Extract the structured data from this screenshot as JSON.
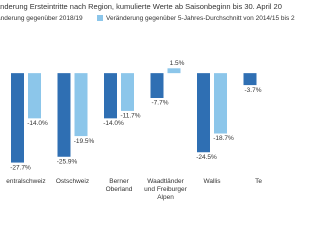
{
  "chart_data": {
    "type": "bar",
    "title": "änderung Ersteintritte nach Region, kumulierte Werte ab Saisonbeginn bis 30. April 20",
    "categories": [
      "entralschweiz",
      "Ostschweiz",
      "Berner Oberland",
      "Waadtländer und Freiburger Alpen",
      "Wallis",
      "Te"
    ],
    "series": [
      {
        "name": "änderung gegenüber 2018/19",
        "color": "#2f6fb3",
        "values": [
          -27.7,
          -25.9,
          -14.0,
          -7.7,
          -24.5,
          -3.7
        ],
        "value_labels": [
          "-27.7%",
          "-25.9%",
          "-14.0%",
          "-7.7%",
          "-24.5%",
          "-3.7%"
        ]
      },
      {
        "name": "Veränderung gegenüber 5-Jahres-Durchschnitt von 2014/15 bis 2",
        "color": "#8cc6ea",
        "values": [
          -14.0,
          -19.5,
          -11.7,
          1.5,
          -18.7,
          null
        ],
        "value_labels": [
          "-14.0%",
          "-19.5%",
          "-11.7%",
          "1.5%",
          "-18.7%",
          null
        ]
      }
    ],
    "ylim": [
      -30,
      5
    ]
  }
}
